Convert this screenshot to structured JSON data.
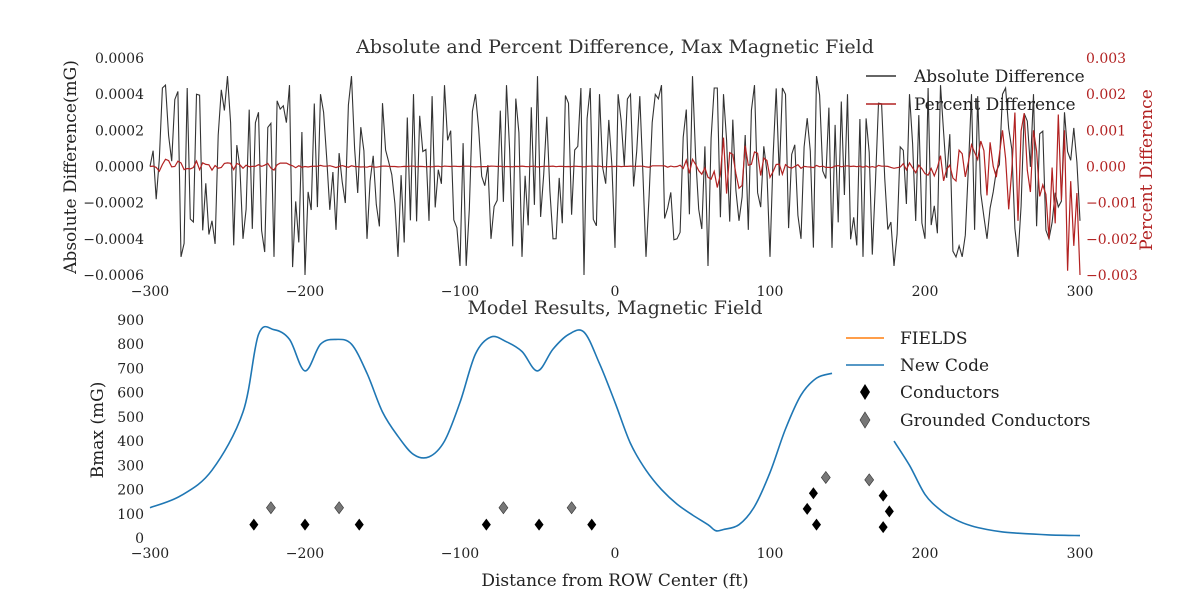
{
  "chart_data": [
    {
      "type": "line",
      "title": "Absolute and Percent Difference, Max Magnetic Field",
      "xlabel": "",
      "ylabel": "Absolute Difference(mG)",
      "y2label": "Percent Difference",
      "xlim": [
        -300,
        300
      ],
      "ylim": [
        -0.0006,
        0.0006
      ],
      "y2lim": [
        -0.003,
        0.003
      ],
      "x_ticks": [
        "−300",
        "−200",
        "−100",
        "0",
        "100",
        "200",
        "300"
      ],
      "y_ticks": [
        "−0.0006",
        "−0.0004",
        "−0.0002",
        "0.0000",
        "0.0002",
        "0.0004",
        "0.0006"
      ],
      "y2_ticks": [
        "−0.003",
        "−0.002",
        "−0.001",
        "0.000",
        "0.001",
        "0.002",
        "0.003"
      ],
      "grid": false,
      "legend_position": "top-right",
      "series": [
        {
          "name": "Absolute Difference",
          "color": "#333333",
          "axis": "left",
          "x": [
            -300,
            -290,
            -280,
            -270,
            -260,
            -250,
            -240,
            -230,
            -220,
            -210,
            -200,
            -190,
            -180,
            -170,
            -160,
            -150,
            -140,
            -130,
            -120,
            -110,
            -100,
            -90,
            -80,
            -70,
            -60,
            -50,
            -40,
            -30,
            -20,
            -10,
            0,
            10,
            20,
            30,
            40,
            50,
            60,
            70,
            80,
            90,
            100,
            110,
            120,
            130,
            140,
            150,
            160,
            170,
            180,
            190,
            200,
            210,
            220,
            230,
            240,
            250,
            260,
            270,
            280,
            290,
            300
          ],
          "values": [
            0.0,
            0.00045,
            -0.0005,
            0.0004,
            -0.0003,
            0.0005,
            -0.0004,
            0.0003,
            -0.0005,
            0.00045,
            -0.0006,
            0.0004,
            -0.00035,
            0.0005,
            -0.0004,
            0.00035,
            -0.0005,
            0.0004,
            -0.0003,
            0.00045,
            -0.00055,
            0.0004,
            -0.0004,
            0.00045,
            -0.0005,
            0.0005,
            -0.0004,
            0.00035,
            -0.0006,
            0.0004,
            -0.00045,
            0.0004,
            -0.0005,
            0.00045,
            -0.0004,
            0.0005,
            -0.00055,
            0.0004,
            -0.0003,
            0.00045,
            -0.0005,
            0.0004,
            -0.0004,
            0.0005,
            -0.00045,
            0.0004,
            -0.0005,
            0.00035,
            -0.00055,
            0.0004,
            -0.0004,
            0.00045,
            -0.0005,
            0.0004,
            -0.0004,
            0.0004,
            -0.0005,
            0.0004,
            -0.0004,
            0.0003,
            -0.0003
          ]
        },
        {
          "name": "Percent Difference",
          "color": "#b22222",
          "axis": "right",
          "x": [
            -300,
            -290,
            -280,
            -270,
            -260,
            -250,
            -240,
            -230,
            -220,
            -210,
            -200,
            -190,
            -180,
            -170,
            -160,
            -150,
            -140,
            -130,
            -120,
            -110,
            -100,
            -90,
            -80,
            -70,
            -60,
            -50,
            -40,
            -30,
            -20,
            -10,
            0,
            10,
            20,
            30,
            40,
            50,
            60,
            70,
            80,
            90,
            100,
            110,
            120,
            130,
            140,
            150,
            160,
            170,
            180,
            190,
            200,
            210,
            220,
            230,
            240,
            250,
            260,
            270,
            280,
            290,
            300
          ],
          "values": [
            0.0,
            0.0002,
            0.0001,
            0.00015,
            -0.0001,
            0.0001,
            -5e-05,
            5e-05,
            -0.0001,
            5e-05,
            0.0,
            3e-05,
            -3e-05,
            2e-05,
            -2e-05,
            1e-05,
            -1e-05,
            1e-05,
            0.0,
            1e-05,
            0.0,
            -1e-05,
            1e-05,
            0.0,
            1e-05,
            -1e-05,
            1e-05,
            0.0,
            -1e-05,
            1e-05,
            0.0,
            1e-05,
            -1e-05,
            2e-05,
            0.0,
            0.0002,
            -0.0003,
            0.0008,
            -0.0006,
            0.0004,
            -0.0003,
            5e-05,
            -5e-05,
            3e-05,
            -3e-05,
            2e-05,
            -2e-05,
            3e-05,
            -5e-05,
            0.0001,
            -0.0002,
            0.0003,
            -0.0004,
            0.0006,
            -0.0008,
            0.001,
            -0.0015,
            0.001,
            -0.002,
            0.001,
            -0.003
          ]
        }
      ]
    },
    {
      "type": "line",
      "title": "Model Results, Magnetic Field",
      "xlabel": "Distance from ROW Center (ft)",
      "ylabel": "Bmax (mG)",
      "xlim": [
        -300,
        300
      ],
      "ylim": [
        0,
        900
      ],
      "x_ticks": [
        "−300",
        "−200",
        "−100",
        "0",
        "100",
        "200",
        "300"
      ],
      "y_ticks": [
        "0",
        "100",
        "200",
        "300",
        "400",
        "500",
        "600",
        "700",
        "800",
        "900"
      ],
      "grid": false,
      "legend_position": "top-right",
      "series": [
        {
          "name": "FIELDS",
          "color": "#ff7f0e",
          "x": [],
          "values": []
        },
        {
          "name": "New Code",
          "color": "#1f77b4",
          "x": [
            -300,
            -280,
            -260,
            -240,
            -230,
            -220,
            -210,
            -200,
            -190,
            -180,
            -170,
            -160,
            -150,
            -140,
            -130,
            -120,
            -110,
            -100,
            -90,
            -80,
            -70,
            -60,
            -50,
            -40,
            -30,
            -20,
            -10,
            0,
            10,
            20,
            30,
            40,
            50,
            60,
            65,
            70,
            80,
            90,
            100,
            110,
            120,
            130,
            140,
            150,
            160,
            170,
            180,
            190,
            200,
            210,
            220,
            230,
            240,
            250,
            260,
            270,
            280,
            290,
            300
          ],
          "values": [
            125,
            175,
            280,
            520,
            840,
            860,
            820,
            690,
            800,
            820,
            800,
            680,
            520,
            420,
            345,
            335,
            400,
            560,
            760,
            830,
            810,
            770,
            690,
            780,
            840,
            850,
            720,
            560,
            390,
            280,
            200,
            140,
            95,
            55,
            30,
            35,
            55,
            130,
            270,
            450,
            590,
            660,
            680,
            null,
            null,
            null,
            400,
            300,
            180,
            115,
            75,
            50,
            35,
            25,
            20,
            16,
            13,
            11,
            10
          ]
        },
        {
          "name": "Conductors",
          "color": "#000000",
          "marker": "diamond",
          "x": [
            -233,
            -200,
            -165,
            -83,
            -49,
            -15,
            124,
            128,
            130,
            173,
            177,
            173
          ],
          "values": [
            55,
            55,
            55,
            55,
            55,
            55,
            120,
            185,
            55,
            175,
            110,
            45
          ]
        },
        {
          "name": "Grounded Conductors",
          "color": "#777777",
          "marker": "diamond",
          "x": [
            -222,
            -178,
            -72,
            -28,
            136,
            164
          ],
          "values": [
            125,
            125,
            125,
            125,
            250,
            240
          ]
        }
      ]
    }
  ]
}
